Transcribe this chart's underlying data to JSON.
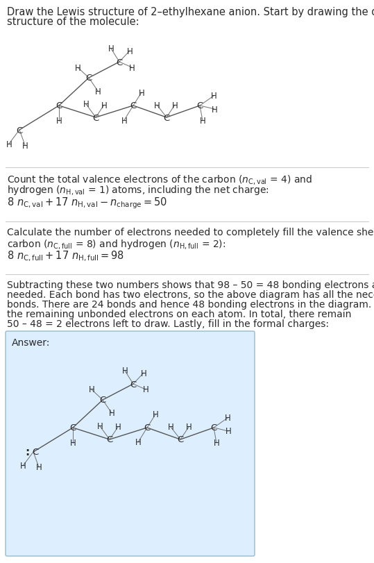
{
  "bg_color": "#ffffff",
  "answer_bg_color": "#ddeeff",
  "answer_border_color": "#99bbcc",
  "text_color": "#2a2a2a",
  "mol_color": "#2a2a2a",
  "bond_color": "#555555",
  "h_color": "#2a2a2a",
  "font_size_title": 10.5,
  "font_size_body": 10.0,
  "font_size_eq": 10.5,
  "font_size_C": 9.5,
  "font_size_H": 8.5
}
